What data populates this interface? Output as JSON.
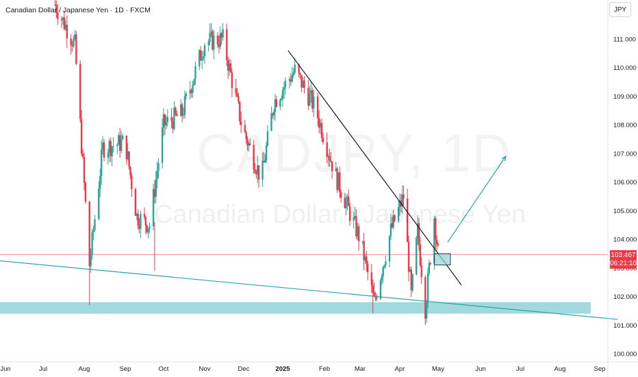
{
  "header": {
    "title": "Canadian Dollar / Japanese Yen · 1D · FXCM",
    "currency_button": "JPY"
  },
  "watermark": {
    "symbol": "CADJPY, 1D",
    "name": "Canadian Dollar / Japanese Yen"
  },
  "price_badge": {
    "price": "103.467",
    "countdown": "06:21:10"
  },
  "colors": {
    "up": "#26a69a",
    "down": "#f23645",
    "trendline": "#131722",
    "support_line": "#26a6aa",
    "support_zone": "#8fd3d8",
    "price_line": "#f28b95"
  },
  "chart_data": {
    "type": "candlestick",
    "title": "Canadian Dollar / Japanese Yen · 1D · FXCM",
    "x_ticks": [
      "Jun",
      "Jul",
      "Aug",
      "Sep",
      "Oct",
      "Nov",
      "Dec",
      "2025",
      "Feb",
      "Mar",
      "Apr",
      "May",
      "Jun",
      "Jul",
      "Aug",
      "Sep"
    ],
    "y_ticks": [
      "100.000",
      "101.000",
      "102.000",
      "103.000",
      "104.000",
      "105.000",
      "106.000",
      "107.000",
      "108.000",
      "109.000",
      "110.000",
      "111.000"
    ],
    "ylim": [
      99.85,
      112.2
    ],
    "last_price": 103.467,
    "series_keypoints": [
      {
        "date": "2024-07-10",
        "close": 112.2
      },
      {
        "date": "2024-07-25",
        "close": 110.8
      },
      {
        "date": "2024-08-05",
        "close": 103.1
      },
      {
        "date": "2024-08-15",
        "close": 107.2
      },
      {
        "date": "2024-09-01",
        "close": 107.4
      },
      {
        "date": "2024-09-10",
        "close": 104.8
      },
      {
        "date": "2024-09-20",
        "close": 104.5
      },
      {
        "date": "2024-10-01",
        "close": 108.0
      },
      {
        "date": "2024-10-15",
        "close": 108.4
      },
      {
        "date": "2024-11-01",
        "close": 110.9
      },
      {
        "date": "2024-11-15",
        "close": 111.0
      },
      {
        "date": "2024-11-30",
        "close": 107.9
      },
      {
        "date": "2024-12-15",
        "close": 106.1
      },
      {
        "date": "2024-12-25",
        "close": 108.8
      },
      {
        "date": "2025-01-10",
        "close": 109.9
      },
      {
        "date": "2025-01-25",
        "close": 108.6
      },
      {
        "date": "2025-02-10",
        "close": 106.2
      },
      {
        "date": "2025-03-01",
        "close": 104.0
      },
      {
        "date": "2025-03-12",
        "close": 101.8
      },
      {
        "date": "2025-03-25",
        "close": 104.3
      },
      {
        "date": "2025-04-04",
        "close": 105.5
      },
      {
        "date": "2025-04-10",
        "close": 102.0
      },
      {
        "date": "2025-04-15",
        "close": 104.3
      },
      {
        "date": "2025-04-21",
        "close": 101.6
      },
      {
        "date": "2025-04-28",
        "close": 104.8
      },
      {
        "date": "2025-05-01",
        "close": 103.5
      }
    ],
    "annotations": {
      "descending_trendline": {
        "from": [
          "2025-01-05",
          110.6
        ],
        "to": [
          "2025-05-18",
          102.4
        ]
      },
      "support_trendline": {
        "from": [
          "2024-05-15",
          103.3
        ],
        "to": [
          "2025-09-15",
          101.2
        ]
      },
      "support_zone": {
        "from": "2024-05-15",
        "to": "2025-08-25",
        "low": 101.4,
        "high": 101.8
      },
      "breakout_box": {
        "from": "2025-04-28",
        "to": "2025-05-10",
        "low": 103.1,
        "high": 103.5
      },
      "projection_arrow": {
        "from": [
          "2025-05-08",
          103.9
        ],
        "to": [
          "2025-06-20",
          106.9
        ]
      }
    }
  }
}
